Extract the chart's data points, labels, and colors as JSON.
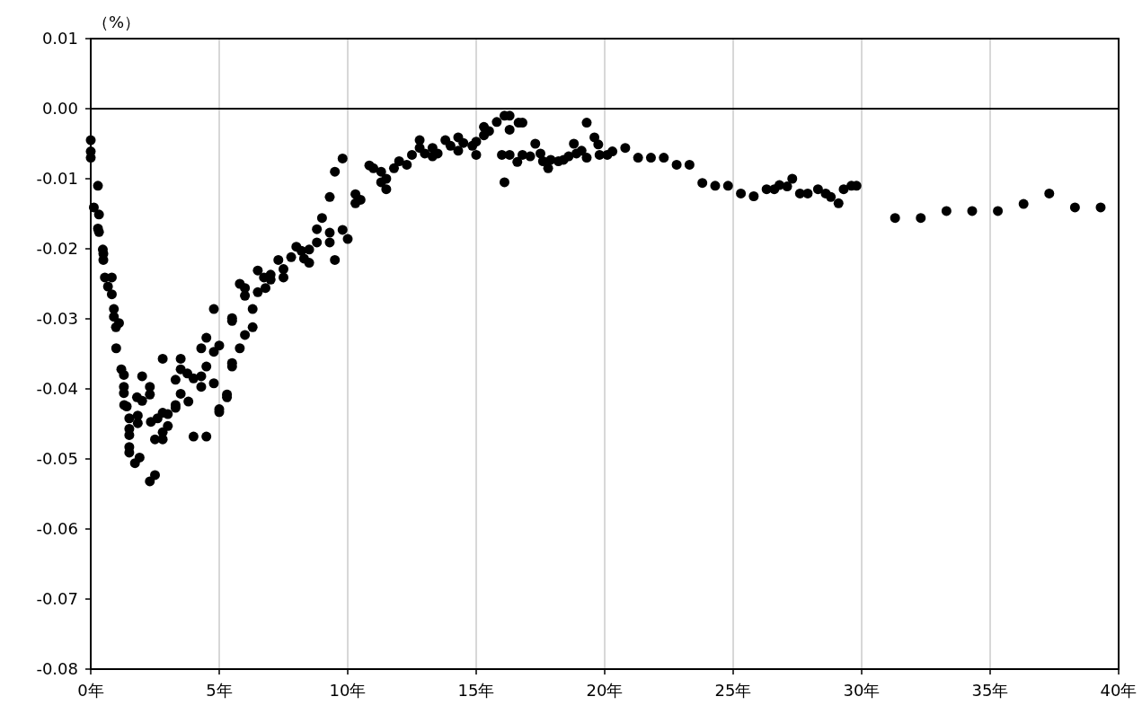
{
  "chart_data": {
    "type": "scatter",
    "ylabel": "（%）",
    "xlim": [
      0,
      40
    ],
    "xticks": [
      {
        "value": 0,
        "label": "0年"
      },
      {
        "value": 5,
        "label": "5年"
      },
      {
        "value": 10,
        "label": "10年"
      },
      {
        "value": 15,
        "label": "15年"
      },
      {
        "value": 20,
        "label": "20年"
      },
      {
        "value": 25,
        "label": "25年"
      },
      {
        "value": 30,
        "label": "30年"
      },
      {
        "value": 35,
        "label": "35年"
      },
      {
        "value": 40,
        "label": "40年"
      }
    ],
    "ylim": [
      -0.08,
      0.01
    ],
    "yticks": [
      {
        "value": 0.01,
        "label": "0.01"
      },
      {
        "value": 0,
        "label": "0.00"
      },
      {
        "value": -0.01,
        "label": "-0.01"
      },
      {
        "value": -0.02,
        "label": "-0.02"
      },
      {
        "value": -0.03,
        "label": "-0.03"
      },
      {
        "value": -0.04,
        "label": "-0.04"
      },
      {
        "value": -0.05,
        "label": "-0.05"
      },
      {
        "value": -0.06,
        "label": "-0.06"
      },
      {
        "value": -0.07,
        "label": "-0.07"
      },
      {
        "value": -0.08,
        "label": "-0.08"
      }
    ],
    "grid": "x",
    "marker": "circle",
    "ref_lines": [
      {
        "axis": "y",
        "value": 0,
        "color": "#000000"
      }
    ],
    "series": [
      {
        "color": "#000000",
        "x": [
          0.0,
          0.0,
          0.0,
          0.28,
          0.12,
          0.32,
          0.28,
          0.32,
          0.47,
          0.49,
          0.49,
          0.55,
          0.82,
          0.67,
          0.82,
          0.9,
          0.9,
          1.1,
          0.98,
          0.99,
          1.19,
          1.29,
          1.29,
          1.29,
          1.3,
          1.4,
          1.5,
          1.5,
          1.5,
          1.5,
          1.5,
          1.72,
          1.9,
          1.8,
          2.0,
          2.0,
          1.83,
          1.83,
          2.3,
          2.3,
          2.3,
          2.5,
          2.34,
          2.6,
          2.5,
          2.8,
          2.8,
          2.8,
          2.8,
          3.0,
          3.0,
          3.3,
          3.3,
          3.3,
          3.5,
          3.5,
          3.5,
          3.8,
          3.76,
          4.0,
          4.0,
          4.3,
          4.3,
          4.3,
          4.5,
          4.5,
          4.5,
          4.79,
          4.79,
          4.79,
          5.0,
          5.0,
          5.0,
          5.3,
          5.3,
          5.5,
          5.5,
          5.5,
          5.5,
          5.8,
          6.0,
          6.3,
          6.3,
          5.8,
          6.0,
          6.0,
          6.5,
          6.5,
          6.74,
          6.8,
          7.0,
          7.0,
          7.3,
          7.5,
          7.5,
          7.8,
          8.0,
          8.2,
          8.3,
          8.5,
          8.5,
          8.8,
          8.8,
          9.0,
          9.3,
          9.3,
          9.3,
          9.5,
          9.5,
          9.8,
          9.8,
          10.0,
          10.3,
          10.3,
          10.5,
          10.84,
          11.0,
          11.3,
          11.3,
          11.5,
          11.5,
          11.8,
          12.0,
          12.3,
          12.5,
          12.8,
          12.8,
          13.0,
          13.3,
          13.3,
          13.5,
          13.8,
          14.0,
          14.3,
          14.3,
          14.5,
          14.85,
          15.0,
          15.0,
          15.3,
          15.3,
          15.5,
          15.8,
          16.0,
          16.1,
          16.1,
          16.3,
          16.3,
          16.3,
          16.6,
          16.65,
          16.8,
          16.8,
          17.1,
          17.3,
          17.5,
          17.6,
          17.8,
          17.9,
          18.2,
          18.4,
          18.6,
          18.8,
          18.9,
          19.1,
          19.3,
          19.3,
          19.6,
          19.75,
          19.8,
          20.1,
          20.3,
          20.8,
          21.3,
          21.8,
          22.3,
          22.8,
          23.3,
          23.8,
          24.3,
          24.8,
          25.3,
          25.8,
          26.3,
          26.6,
          26.8,
          27.1,
          27.3,
          27.6,
          27.9,
          28.3,
          28.6,
          28.8,
          29.1,
          29.3,
          29.6,
          29.8,
          31.3,
          32.3,
          33.3,
          34.3,
          35.3,
          36.3,
          37.3,
          38.3,
          39.3
        ],
        "values": [
          -0.0045,
          -0.0061,
          -0.007,
          -0.011,
          -0.0141,
          -0.0151,
          -0.0171,
          -0.0176,
          -0.0201,
          -0.0207,
          -0.0216,
          -0.0241,
          -0.0241,
          -0.0254,
          -0.0265,
          -0.0286,
          -0.0297,
          -0.0306,
          -0.0312,
          -0.0342,
          -0.0372,
          -0.038,
          -0.0397,
          -0.0406,
          -0.0423,
          -0.0425,
          -0.0442,
          -0.0457,
          -0.0466,
          -0.0483,
          -0.0491,
          -0.0506,
          -0.0498,
          -0.0412,
          -0.0417,
          -0.0382,
          -0.0438,
          -0.0449,
          -0.0397,
          -0.0408,
          -0.0532,
          -0.0523,
          -0.0447,
          -0.0442,
          -0.0472,
          -0.0357,
          -0.0434,
          -0.0462,
          -0.0472,
          -0.0436,
          -0.0453,
          -0.0423,
          -0.0427,
          -0.0387,
          -0.0357,
          -0.0372,
          -0.0407,
          -0.0418,
          -0.0378,
          -0.0385,
          -0.0468,
          -0.0382,
          -0.0397,
          -0.0342,
          -0.0327,
          -0.0468,
          -0.0368,
          -0.0286,
          -0.0347,
          -0.0392,
          -0.0338,
          -0.0429,
          -0.0433,
          -0.0408,
          -0.0412,
          -0.0299,
          -0.0303,
          -0.0363,
          -0.0368,
          -0.0342,
          -0.0323,
          -0.0312,
          -0.0286,
          -0.025,
          -0.0256,
          -0.0267,
          -0.0231,
          -0.0262,
          -0.0241,
          -0.0256,
          -0.0244,
          -0.0237,
          -0.0216,
          -0.0241,
          -0.0229,
          -0.0212,
          -0.0197,
          -0.0203,
          -0.0214,
          -0.022,
          -0.0201,
          -0.0172,
          -0.0191,
          -0.0156,
          -0.0177,
          -0.0191,
          -0.0126,
          -0.0216,
          -0.009,
          -0.0071,
          -0.0173,
          -0.0186,
          -0.0122,
          -0.0135,
          -0.013,
          -0.0081,
          -0.0085,
          -0.009,
          -0.0105,
          -0.01,
          -0.0115,
          -0.0085,
          -0.0075,
          -0.008,
          -0.0066,
          -0.0045,
          -0.0056,
          -0.0064,
          -0.0068,
          -0.0056,
          -0.0064,
          -0.0045,
          -0.0053,
          -0.0041,
          -0.006,
          -0.0049,
          -0.0053,
          -0.0047,
          -0.0066,
          -0.0026,
          -0.0038,
          -0.0032,
          -0.0019,
          -0.0066,
          -0.0105,
          -0.001,
          -0.001,
          -0.003,
          -0.0066,
          -0.0076,
          -0.002,
          -0.002,
          -0.0066,
          -0.0068,
          -0.005,
          -0.0064,
          -0.0075,
          -0.0085,
          -0.0073,
          -0.0075,
          -0.0073,
          -0.0068,
          -0.005,
          -0.0064,
          -0.006,
          -0.002,
          -0.007,
          -0.0041,
          -0.0051,
          -0.0066,
          -0.0066,
          -0.0061,
          -0.0056,
          -0.007,
          -0.007,
          -0.007,
          -0.008,
          -0.008,
          -0.0106,
          -0.011,
          -0.011,
          -0.0121,
          -0.0125,
          -0.0115,
          -0.0115,
          -0.0109,
          -0.0111,
          -0.01,
          -0.0121,
          -0.0121,
          -0.0115,
          -0.0121,
          -0.0126,
          -0.0135,
          -0.0115,
          -0.011,
          -0.011,
          -0.0156,
          -0.0156,
          -0.0146,
          -0.0146,
          -0.0146,
          -0.0136,
          -0.0121,
          -0.0141,
          -0.0141
        ]
      }
    ]
  }
}
